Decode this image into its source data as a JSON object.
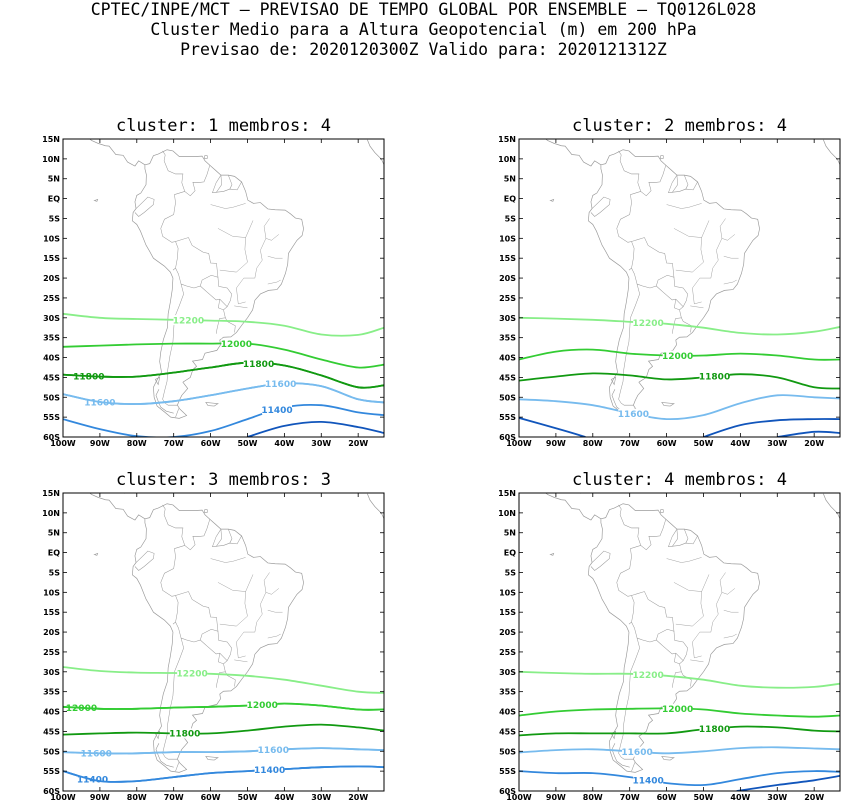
{
  "header": {
    "line1": "CPTEC/INPE/MCT – PREVISAO DE TEMPO GLOBAL POR ENSEMBLE – TQ0126L028",
    "line2": "Cluster Medio para a Altura Geopotencial (m) em 200 hPa",
    "line3": "Previsao de: 2020120300Z    Valido para: 2020121312Z"
  },
  "colors": {
    "12200": "#88ee88",
    "12000": "#33cc33",
    "11800": "#119911",
    "11600": "#77bbee",
    "11400": "#3388dd",
    "11200": "#1155bb",
    "map": "#9a9a9a"
  },
  "chart_data": [
    {
      "type": "line",
      "title": "cluster: 1   membros: 4",
      "xlim": [
        -100,
        -13
      ],
      "ylim": [
        -60,
        15
      ],
      "xticks": [
        "100W",
        "90W",
        "80W",
        "70W",
        "60W",
        "50W",
        "40W",
        "30W",
        "20W"
      ],
      "yticks": [
        "15N",
        "10N",
        "5N",
        "EQ",
        "5S",
        "10S",
        "15S",
        "20S",
        "25S",
        "30S",
        "35S",
        "40S",
        "45S",
        "50S",
        "55S",
        "60S"
      ],
      "series": [
        {
          "name": "12200",
          "x": [
            -100,
            -90,
            -80,
            -70,
            -60,
            -50,
            -40,
            -30,
            -20,
            -13
          ],
          "y": [
            -29,
            -30,
            -30.3,
            -30.5,
            -30.7,
            -31,
            -32,
            -34.2,
            -34.3,
            -32.5
          ],
          "label_x": -66
        },
        {
          "name": "12000",
          "x": [
            -100,
            -90,
            -80,
            -70,
            -60,
            -50,
            -40,
            -30,
            -20,
            -13
          ],
          "y": [
            -37.3,
            -37,
            -36.7,
            -36.5,
            -36.5,
            -36.5,
            -38,
            -40.5,
            -42.5,
            -41.8
          ],
          "label_x": -53
        },
        {
          "name": "11800",
          "x": [
            -100,
            -90,
            -80,
            -70,
            -60,
            -50,
            -40,
            -30,
            -20,
            -13
          ],
          "y": [
            -44.3,
            -44.8,
            -44.8,
            -43.8,
            -42.5,
            -41.3,
            -42,
            -44.5,
            -47.5,
            -47
          ],
          "label_x": -93
        },
        {
          "name": "11800",
          "x": [
            -100,
            -90,
            -80,
            -70,
            -60,
            -50,
            -40,
            -30,
            -20,
            -13
          ],
          "y": [
            -44.3,
            -44.8,
            -44.8,
            -43.8,
            -42.5,
            -41.3,
            -42,
            -44.5,
            -47.5,
            -47
          ],
          "label_x": -47
        },
        {
          "name": "11600",
          "x": [
            -100,
            -90,
            -80,
            -70,
            -60,
            -50,
            -40,
            -30,
            -20,
            -13
          ],
          "y": [
            -49.2,
            -51.2,
            -51.7,
            -51,
            -49.5,
            -47.8,
            -46.5,
            -47.2,
            -50.5,
            -51.3
          ],
          "label_x": -90
        },
        {
          "name": "11600",
          "x": [
            -100,
            -90,
            -80,
            -70,
            -60,
            -50,
            -40,
            -30,
            -20,
            -13
          ],
          "y": [
            -49.2,
            -51.2,
            -51.7,
            -51,
            -49.5,
            -47.8,
            -46.5,
            -47.2,
            -50.5,
            -51.3
          ],
          "label_x": -41
        },
        {
          "name": "11400",
          "x": [
            -100,
            -90,
            -80,
            -70,
            -60,
            -50,
            -40,
            -30,
            -20,
            -13
          ],
          "y": [
            -55.5,
            -58,
            -59.8,
            -60,
            -58.5,
            -55.5,
            -52.5,
            -52,
            -53.8,
            -54.5
          ],
          "label_x": -42
        },
        {
          "name": "",
          "x": [
            -50,
            -40,
            -30,
            -20,
            -13
          ],
          "y": [
            -60,
            -57.2,
            -56.2,
            -57.5,
            -59
          ],
          "label_x": null
        }
      ]
    },
    {
      "type": "line",
      "title": "cluster: 2   membros: 4",
      "xlim": [
        -100,
        -13
      ],
      "ylim": [
        -60,
        15
      ],
      "xticks": [
        "100W",
        "90W",
        "80W",
        "70W",
        "60W",
        "50W",
        "40W",
        "30W",
        "20W"
      ],
      "yticks": [
        "15N",
        "10N",
        "5N",
        "EQ",
        "5S",
        "10S",
        "15S",
        "20S",
        "25S",
        "30S",
        "35S",
        "40S",
        "45S",
        "50S",
        "55S",
        "60S"
      ],
      "series": [
        {
          "name": "12200",
          "x": [
            -100,
            -90,
            -80,
            -70,
            -60,
            -50,
            -40,
            -30,
            -20,
            -13
          ],
          "y": [
            -30,
            -30.2,
            -30.5,
            -31,
            -31.5,
            -32.5,
            -33.8,
            -34.2,
            -33.5,
            -32.3
          ],
          "label_x": -65
        },
        {
          "name": "12000",
          "x": [
            -100,
            -90,
            -80,
            -70,
            -60,
            -50,
            -40,
            -30,
            -20,
            -13
          ],
          "y": [
            -40.5,
            -38.5,
            -38,
            -39,
            -39.5,
            -39.5,
            -39,
            -39.5,
            -40.5,
            -40.5
          ],
          "label_x": -57
        },
        {
          "name": "11800",
          "x": [
            -100,
            -90,
            -80,
            -70,
            -60,
            -50,
            -40,
            -30,
            -20,
            -13
          ],
          "y": [
            -45.8,
            -44.8,
            -44,
            -44.5,
            -45.5,
            -45,
            -44.2,
            -45,
            -47.5,
            -47.8
          ],
          "label_x": -47
        },
        {
          "name": "11600",
          "x": [
            -100,
            -90,
            -80,
            -70,
            -60,
            -50,
            -40,
            -30,
            -20,
            -13
          ],
          "y": [
            -50.5,
            -51,
            -52,
            -54,
            -55.5,
            -54.5,
            -51.5,
            -49.5,
            -50,
            -50.3
          ],
          "label_x": -69
        },
        {
          "name": "",
          "x": [
            -100,
            -90,
            -82
          ],
          "y": [
            -55.2,
            -57.8,
            -60
          ],
          "label_x": null
        },
        {
          "name": "",
          "x": [
            -50,
            -40,
            -30,
            -20,
            -13
          ],
          "y": [
            -60,
            -57,
            -55.8,
            -55.5,
            -55.5
          ],
          "label_x": null
        },
        {
          "name": "",
          "x": [
            -30,
            -20,
            -13
          ],
          "y": [
            -60,
            -58.7,
            -59
          ],
          "label_x": null
        }
      ]
    },
    {
      "type": "line",
      "title": "cluster: 3   membros: 3",
      "xlim": [
        -100,
        -13
      ],
      "ylim": [
        -60,
        15
      ],
      "xticks": [
        "100W",
        "90W",
        "80W",
        "70W",
        "60W",
        "50W",
        "40W",
        "30W",
        "20W"
      ],
      "yticks": [
        "15N",
        "10N",
        "5N",
        "EQ",
        "5S",
        "10S",
        "15S",
        "20S",
        "25S",
        "30S",
        "35S",
        "40S",
        "45S",
        "50S",
        "55S",
        "60S"
      ],
      "series": [
        {
          "name": "12200",
          "x": [
            -100,
            -90,
            -80,
            -70,
            -60,
            -50,
            -40,
            -30,
            -20,
            -13
          ],
          "y": [
            -28.8,
            -29.8,
            -30.2,
            -30.3,
            -30.5,
            -31,
            -32,
            -33.5,
            -35,
            -35.3
          ],
          "label_x": -65
        },
        {
          "name": "12000",
          "x": [
            -100,
            -90,
            -80,
            -70,
            -60,
            -50,
            -40,
            -30,
            -20,
            -13
          ],
          "y": [
            -38.8,
            -39.3,
            -39.3,
            -39,
            -38.8,
            -38.5,
            -38,
            -38.5,
            -39.5,
            -39.5
          ],
          "label_x": -95
        },
        {
          "name": "12000",
          "x": [
            -100,
            -90,
            -80,
            -70,
            -60,
            -50,
            -40,
            -30,
            -20,
            -13
          ],
          "y": [
            -38.8,
            -39.3,
            -39.3,
            -39,
            -38.8,
            -38.5,
            -38,
            -38.5,
            -39.5,
            -39.5
          ],
          "label_x": -46
        },
        {
          "name": "11800",
          "x": [
            -100,
            -90,
            -80,
            -70,
            -60,
            -50,
            -40,
            -30,
            -20,
            -13
          ],
          "y": [
            -45.8,
            -45.5,
            -45.3,
            -45.5,
            -45.5,
            -44.8,
            -43.8,
            -43.3,
            -44,
            -44.8
          ],
          "label_x": -67
        },
        {
          "name": "11600",
          "x": [
            -100,
            -90,
            -80,
            -70,
            -60,
            -50,
            -40,
            -30,
            -20,
            -13
          ],
          "y": [
            -50.2,
            -50.5,
            -50.5,
            -50.2,
            -50.2,
            -50,
            -49.5,
            -49.2,
            -49.5,
            -49.7
          ],
          "label_x": -91
        },
        {
          "name": "11600",
          "x": [
            -100,
            -90,
            -80,
            -70,
            -60,
            -50,
            -40,
            -30,
            -20,
            -13
          ],
          "y": [
            -50.2,
            -50.5,
            -50.5,
            -50.2,
            -50.2,
            -50,
            -49.5,
            -49.2,
            -49.5,
            -49.7
          ],
          "label_x": -43
        },
        {
          "name": "11400",
          "x": [
            -100,
            -90,
            -80,
            -70,
            -60,
            -50,
            -40,
            -30,
            -20,
            -13
          ],
          "y": [
            -55,
            -57.5,
            -57.5,
            -56.5,
            -55.5,
            -55,
            -54.5,
            -54,
            -53.8,
            -54
          ],
          "label_x": -92
        },
        {
          "name": "11400",
          "x": [
            -100,
            -90,
            -80,
            -70,
            -60,
            -50,
            -40,
            -30,
            -20,
            -13
          ],
          "y": [
            -55,
            -57.5,
            -57.5,
            -56.5,
            -55.5,
            -55,
            -54.5,
            -54,
            -53.8,
            -54
          ],
          "label_x": -44
        }
      ]
    },
    {
      "type": "line",
      "title": "cluster: 4   membros: 4",
      "xlim": [
        -100,
        -13
      ],
      "ylim": [
        -60,
        15
      ],
      "xticks": [
        "100W",
        "90W",
        "80W",
        "70W",
        "60W",
        "50W",
        "40W",
        "30W",
        "20W"
      ],
      "yticks": [
        "15N",
        "10N",
        "5N",
        "EQ",
        "5S",
        "10S",
        "15S",
        "20S",
        "25S",
        "30S",
        "35S",
        "40S",
        "45S",
        "50S",
        "55S",
        "60S"
      ],
      "series": [
        {
          "name": "12200",
          "x": [
            -100,
            -90,
            -80,
            -70,
            -60,
            -50,
            -40,
            -30,
            -20,
            -13
          ],
          "y": [
            -30,
            -30.3,
            -30.5,
            -30.5,
            -31,
            -32,
            -33.5,
            -34,
            -33.8,
            -33
          ],
          "label_x": -65
        },
        {
          "name": "12000",
          "x": [
            -100,
            -90,
            -80,
            -70,
            -60,
            -50,
            -40,
            -30,
            -20,
            -13
          ],
          "y": [
            -41,
            -40,
            -39.5,
            -39.3,
            -39.2,
            -39.5,
            -40.5,
            -41,
            -41.3,
            -41
          ],
          "label_x": -57
        },
        {
          "name": "11800",
          "x": [
            -100,
            -90,
            -80,
            -70,
            -60,
            -50,
            -40,
            -30,
            -20,
            -13
          ],
          "y": [
            -46,
            -45.5,
            -45.5,
            -45.5,
            -45.5,
            -44.5,
            -43.8,
            -44,
            -44.8,
            -45
          ],
          "label_x": -47
        },
        {
          "name": "11600",
          "x": [
            -100,
            -90,
            -80,
            -70,
            -60,
            -50,
            -40,
            -30,
            -20,
            -13
          ],
          "y": [
            -50.3,
            -49.7,
            -49.5,
            -50,
            -50.5,
            -50,
            -49.2,
            -49,
            -49.3,
            -49.5
          ],
          "label_x": -68
        },
        {
          "name": "11400",
          "x": [
            -100,
            -90,
            -80,
            -70,
            -60,
            -50,
            -40,
            -30,
            -20,
            -13
          ],
          "y": [
            -55,
            -55.5,
            -55.5,
            -56.5,
            -58,
            -58.5,
            -57,
            -55.5,
            -55,
            -55.2
          ],
          "label_x": -65
        },
        {
          "name": "",
          "x": [
            -41,
            -30,
            -20,
            -13
          ],
          "y": [
            -60,
            -58.5,
            -57.3,
            -56.2
          ],
          "label_x": null
        }
      ]
    }
  ]
}
